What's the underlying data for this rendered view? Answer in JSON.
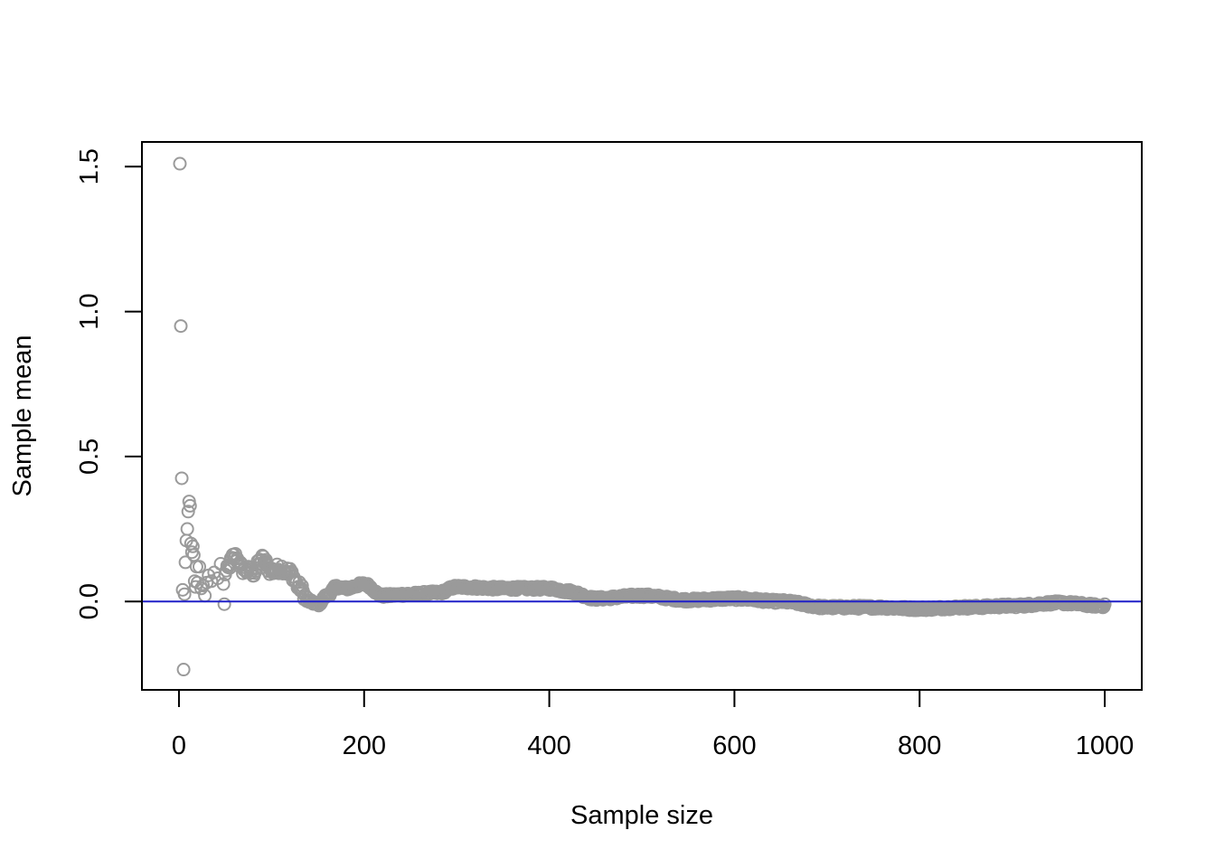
{
  "chart_data": {
    "type": "scatter",
    "xlabel": "Sample size",
    "ylabel": "Sample mean",
    "xlim": [
      -40,
      1040
    ],
    "ylim": [
      -0.305,
      1.585
    ],
    "x_ticks": [
      0,
      200,
      400,
      600,
      800,
      1000
    ],
    "y_ticks": [
      0.0,
      0.5,
      1.0,
      1.5
    ],
    "x_tick_labels": [
      "0",
      "200",
      "400",
      "600",
      "800",
      "1000"
    ],
    "y_tick_labels": [
      "0.0",
      "0.5",
      "1.0",
      "1.5"
    ],
    "reference_line": {
      "y": 0,
      "color": "#2020c8"
    },
    "point_color": "#9a9a9a",
    "n": 1000,
    "early_points": [
      [
        1,
        1.51
      ],
      [
        2,
        0.95
      ],
      [
        3,
        0.425
      ],
      [
        4,
        0.04
      ],
      [
        5,
        -0.235
      ],
      [
        6,
        0.025
      ],
      [
        7,
        0.135
      ],
      [
        8,
        0.21
      ],
      [
        9,
        0.25
      ],
      [
        10,
        0.31
      ],
      [
        11,
        0.345
      ],
      [
        12,
        0.33
      ],
      [
        13,
        0.2
      ],
      [
        14,
        0.17
      ],
      [
        15,
        0.19
      ],
      [
        16,
        0.16
      ],
      [
        17,
        0.07
      ],
      [
        18,
        0.05
      ],
      [
        19,
        0.12
      ],
      [
        20,
        0.065
      ],
      [
        22,
        0.12
      ],
      [
        24,
        0.045
      ],
      [
        26,
        0.055
      ],
      [
        28,
        0.02
      ],
      [
        30,
        0.065
      ],
      [
        32,
        0.09
      ],
      [
        35,
        0.07
      ],
      [
        38,
        0.1
      ],
      [
        42,
        0.08
      ],
      [
        45,
        0.13
      ],
      [
        48,
        0.06
      ]
    ],
    "trend_knots": [
      [
        50,
        0.1
      ],
      [
        60,
        0.155
      ],
      [
        70,
        0.11
      ],
      [
        80,
        0.1
      ],
      [
        90,
        0.145
      ],
      [
        100,
        0.105
      ],
      [
        110,
        0.115
      ],
      [
        120,
        0.1
      ],
      [
        130,
        0.05
      ],
      [
        140,
        0.0
      ],
      [
        150,
        -0.01
      ],
      [
        160,
        0.02
      ],
      [
        170,
        0.05
      ],
      [
        180,
        0.045
      ],
      [
        200,
        0.06
      ],
      [
        220,
        0.02
      ],
      [
        250,
        0.025
      ],
      [
        280,
        0.03
      ],
      [
        300,
        0.05
      ],
      [
        350,
        0.045
      ],
      [
        400,
        0.045
      ],
      [
        420,
        0.035
      ],
      [
        450,
        0.01
      ],
      [
        500,
        0.02
      ],
      [
        550,
        0.005
      ],
      [
        600,
        0.01
      ],
      [
        650,
        0.0
      ],
      [
        700,
        -0.02
      ],
      [
        750,
        -0.02
      ],
      [
        800,
        -0.025
      ],
      [
        850,
        -0.02
      ],
      [
        900,
        -0.015
      ],
      [
        950,
        -0.005
      ],
      [
        1000,
        -0.015
      ]
    ]
  }
}
